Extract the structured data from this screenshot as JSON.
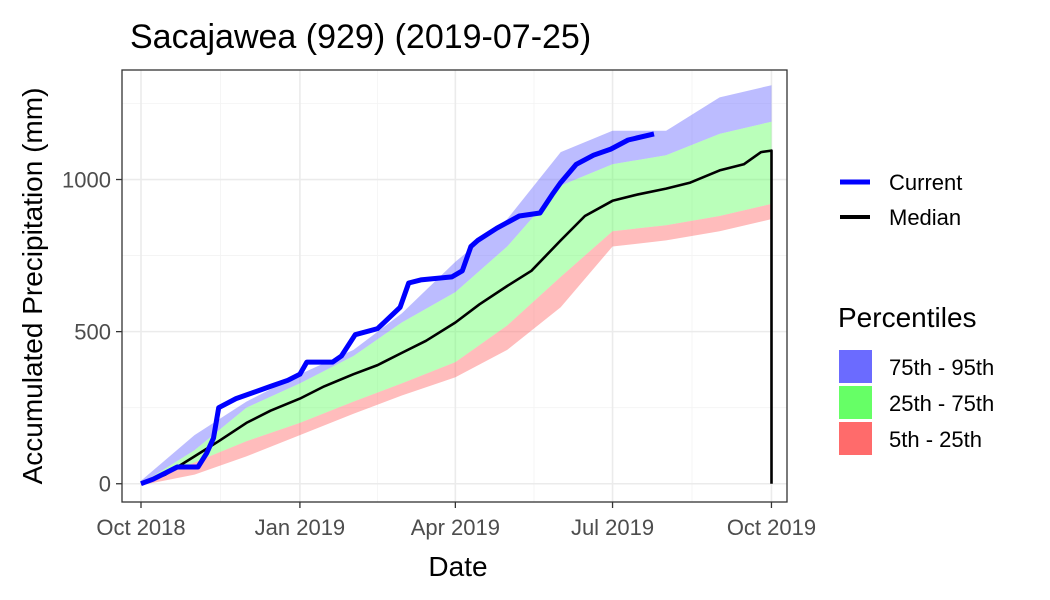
{
  "chart_data": {
    "type": "line",
    "title": "Sacajawea (929) (2019-07-25)",
    "xlabel": "Date",
    "ylabel": "Accumulated Precipitation (mm)",
    "x_axis": {
      "type": "date",
      "range": [
        "2018-09-20",
        "2019-10-10"
      ],
      "ticks": [
        {
          "date": "2018-10-01",
          "label": "Oct 2018"
        },
        {
          "date": "2019-01-01",
          "label": "Jan 2019"
        },
        {
          "date": "2019-04-01",
          "label": "Apr 2019"
        },
        {
          "date": "2019-07-01",
          "label": "Jul 2019"
        },
        {
          "date": "2019-10-01",
          "label": "Oct 2019"
        }
      ]
    },
    "y_axis": {
      "range": [
        -60,
        1360
      ],
      "ticks": [
        {
          "value": 0,
          "label": "0"
        },
        {
          "value": 500,
          "label": "500"
        },
        {
          "value": 1000,
          "label": "1000"
        }
      ]
    },
    "grid": true,
    "legend_position": "right",
    "colors": {
      "current": "#0000ff",
      "median": "#000000",
      "p75_95": "#6b6bff",
      "p25_75": "#66ff66",
      "p5_25": "#ff6b6b"
    },
    "series": [
      {
        "name": "Current",
        "key": "current",
        "points": [
          [
            "2018-10-01",
            0
          ],
          [
            "2018-10-08",
            15
          ],
          [
            "2018-10-15",
            35
          ],
          [
            "2018-10-22",
            55
          ],
          [
            "2018-11-03",
            55
          ],
          [
            "2018-11-08",
            100
          ],
          [
            "2018-11-12",
            150
          ],
          [
            "2018-11-15",
            250
          ],
          [
            "2018-11-25",
            280
          ],
          [
            "2018-12-05",
            300
          ],
          [
            "2018-12-15",
            320
          ],
          [
            "2018-12-25",
            340
          ],
          [
            "2019-01-01",
            360
          ],
          [
            "2019-01-05",
            400
          ],
          [
            "2019-01-20",
            400
          ],
          [
            "2019-01-25",
            420
          ],
          [
            "2019-02-02",
            490
          ],
          [
            "2019-02-15",
            510
          ],
          [
            "2019-02-28",
            580
          ],
          [
            "2019-03-05",
            660
          ],
          [
            "2019-03-12",
            670
          ],
          [
            "2019-03-30",
            680
          ],
          [
            "2019-04-05",
            700
          ],
          [
            "2019-04-10",
            780
          ],
          [
            "2019-04-14",
            800
          ],
          [
            "2019-04-25",
            840
          ],
          [
            "2019-05-08",
            880
          ],
          [
            "2019-05-20",
            890
          ],
          [
            "2019-05-27",
            950
          ],
          [
            "2019-06-01",
            990
          ],
          [
            "2019-06-10",
            1050
          ],
          [
            "2019-06-20",
            1080
          ],
          [
            "2019-06-30",
            1100
          ],
          [
            "2019-07-10",
            1130
          ],
          [
            "2019-07-25",
            1150
          ]
        ]
      },
      {
        "name": "Median",
        "key": "median",
        "points": [
          [
            "2018-10-01",
            0
          ],
          [
            "2018-10-15",
            30
          ],
          [
            "2018-11-01",
            90
          ],
          [
            "2018-11-15",
            140
          ],
          [
            "2018-12-01",
            200
          ],
          [
            "2018-12-15",
            240
          ],
          [
            "2019-01-01",
            280
          ],
          [
            "2019-01-15",
            320
          ],
          [
            "2019-02-01",
            360
          ],
          [
            "2019-02-15",
            390
          ],
          [
            "2019-03-01",
            430
          ],
          [
            "2019-03-15",
            470
          ],
          [
            "2019-04-01",
            530
          ],
          [
            "2019-04-15",
            590
          ],
          [
            "2019-05-01",
            650
          ],
          [
            "2019-05-15",
            700
          ],
          [
            "2019-06-01",
            800
          ],
          [
            "2019-06-15",
            880
          ],
          [
            "2019-07-01",
            930
          ],
          [
            "2019-07-15",
            950
          ],
          [
            "2019-08-01",
            970
          ],
          [
            "2019-08-15",
            990
          ],
          [
            "2019-09-01",
            1030
          ],
          [
            "2019-09-15",
            1050
          ],
          [
            "2019-09-25",
            1090
          ],
          [
            "2019-10-01",
            1095
          ],
          [
            "2019-10-01",
            0
          ]
        ]
      }
    ],
    "percentile_bands": {
      "title": "Percentiles",
      "dates": [
        "2018-10-01",
        "2018-11-01",
        "2018-12-01",
        "2019-01-01",
        "2019-02-01",
        "2019-03-01",
        "2019-04-01",
        "2019-05-01",
        "2019-06-01",
        "2019-07-01",
        "2019-08-01",
        "2019-09-01",
        "2019-10-01"
      ],
      "bands": [
        {
          "name": "75th - 95th",
          "key": "p75_95",
          "lower": [
            0,
            110,
            250,
            330,
            420,
            530,
            630,
            780,
            980,
            1050,
            1080,
            1150,
            1190
          ],
          "upper": [
            10,
            160,
            270,
            360,
            440,
            560,
            730,
            870,
            1090,
            1160,
            1160,
            1270,
            1310
          ]
        },
        {
          "name": "25th - 75th",
          "key": "p25_75",
          "lower": [
            0,
            70,
            140,
            200,
            270,
            330,
            400,
            520,
            680,
            830,
            850,
            880,
            920
          ],
          "upper": [
            0,
            110,
            250,
            330,
            420,
            530,
            630,
            780,
            980,
            1050,
            1080,
            1150,
            1190
          ]
        },
        {
          "name": "5th - 25th",
          "key": "p5_25",
          "lower": [
            -5,
            30,
            90,
            160,
            230,
            290,
            350,
            440,
            580,
            780,
            800,
            830,
            870
          ],
          "upper": [
            0,
            70,
            140,
            200,
            270,
            330,
            400,
            520,
            680,
            830,
            850,
            880,
            920
          ]
        }
      ]
    }
  }
}
